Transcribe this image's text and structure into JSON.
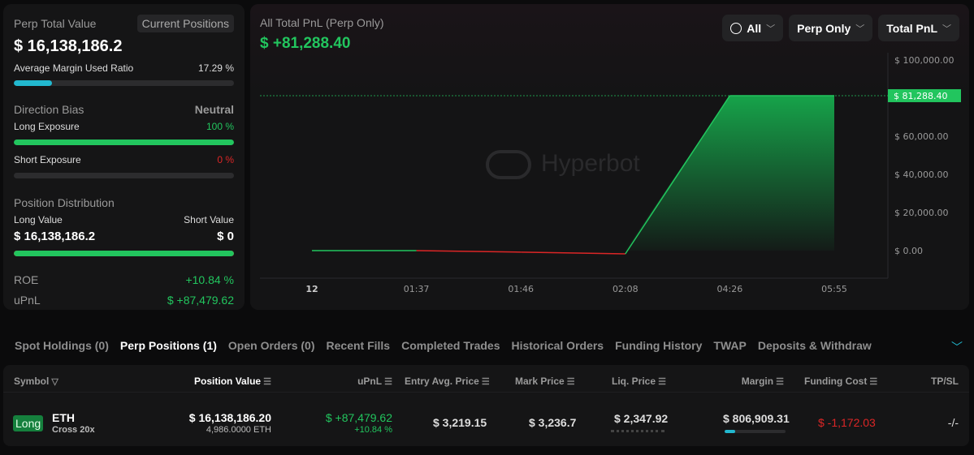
{
  "summary": {
    "title": "Perp Total Value",
    "current_positions_btn": "Current Positions",
    "total_value": "$ 16,138,186.2",
    "margin_label": "Average Margin Used Ratio",
    "margin_value": "17.29 %",
    "margin_pct": 17.29,
    "direction_label": "Direction Bias",
    "direction_value": "Neutral",
    "long_exposure_label": "Long Exposure",
    "long_exposure_value": "100 %",
    "long_exposure_pct": 100,
    "short_exposure_label": "Short Exposure",
    "short_exposure_value": "0 %",
    "short_exposure_pct": 0,
    "distribution_label": "Position Distribution",
    "long_value_label": "Long Value",
    "short_value_label": "Short Value",
    "long_value": "$ 16,138,186.2",
    "short_value": "$ 0",
    "long_share_pct": 100,
    "roe_label": "ROE",
    "roe_value": "+10.84 %",
    "upnl_label": "uPnL",
    "upnl_value": "$ +87,479.62"
  },
  "chart": {
    "title": "All Total PnL (Perp Only)",
    "value": "$ +81,288.40",
    "watermark": "Hyperbot",
    "filters": {
      "range": "All",
      "scope": "Perp Only",
      "metric": "Total PnL"
    },
    "current_label": "$ 81,288.40"
  },
  "chart_data": {
    "type": "area",
    "x": [
      "12",
      "01:37",
      "01:46",
      "02:08",
      "04:26",
      "05:55"
    ],
    "values": [
      0,
      0,
      -800,
      -1700,
      81288.4,
      81288.4
    ],
    "yticks": [
      "$ 100,000.00",
      "$ 60,000.00",
      "$ 40,000.00",
      "$ 20,000.00",
      "$ 0.00"
    ],
    "ytick_values": [
      100000,
      60000,
      40000,
      20000,
      0
    ],
    "ylim": [
      -14000,
      112000
    ],
    "current": 81288.4,
    "colors": {
      "positive": "#22c55e",
      "negative": "#dc2626"
    }
  },
  "tabs": [
    "Spot Holdings (0)",
    "Perp Positions (1)",
    "Open Orders (0)",
    "Recent Fills",
    "Completed Trades",
    "Historical Orders",
    "Funding History",
    "TWAP",
    "Deposits & Withdraw"
  ],
  "table": {
    "headers": [
      "Symbol",
      "Position Value",
      "uPnL",
      "Entry Avg. Price",
      "Mark Price",
      "Liq. Price",
      "Margin",
      "Funding Cost",
      "TP/SL"
    ],
    "rows": [
      {
        "side": "Long",
        "symbol": "ETH",
        "mode": "Cross 20x",
        "position_value": "$ 16,138,186.20",
        "size": "4,986.0000 ETH",
        "upnl": "$ +87,479.62",
        "upnl_pct": "+10.84 %",
        "entry": "$ 3,219.15",
        "mark": "$ 3,236.7",
        "liq": "$ 2,347.92",
        "margin": "$ 806,909.31",
        "margin_ratio_pct": 17.29,
        "funding": "$ -1,172.03",
        "tpsl": "-/-"
      }
    ]
  }
}
